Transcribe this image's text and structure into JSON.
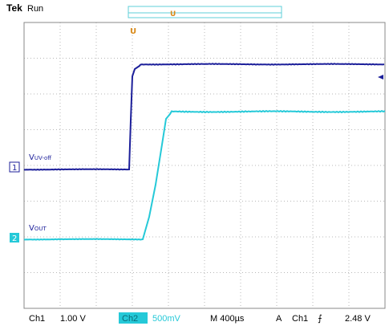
{
  "header": {
    "brand": "Tek",
    "mode": "Run"
  },
  "trigger_marker": {
    "symbol": "U",
    "color": "#d98a1a"
  },
  "channels": [
    {
      "id": "1",
      "label": "V",
      "subscript": "UV-off",
      "color": "#1c1f9a"
    },
    {
      "id": "2",
      "label": "V",
      "subscript": "OUT",
      "color": "#25c9d8"
    }
  ],
  "status_bar": {
    "ch1_label": "Ch1",
    "ch1_scale": "1.00 V",
    "ch2_prefix": "Ch2",
    "ch2_scale": "500mV",
    "timebase": "M 400µs",
    "trigger_mode": "A",
    "trigger_source": "Ch1",
    "trigger_slope": "⨍",
    "trigger_level": "2.48 V"
  },
  "colors": {
    "grid": "#b8b8b8",
    "ch1": "#1c1f9a",
    "ch2": "#25c9d8",
    "trigger": "#d98a1a"
  }
}
